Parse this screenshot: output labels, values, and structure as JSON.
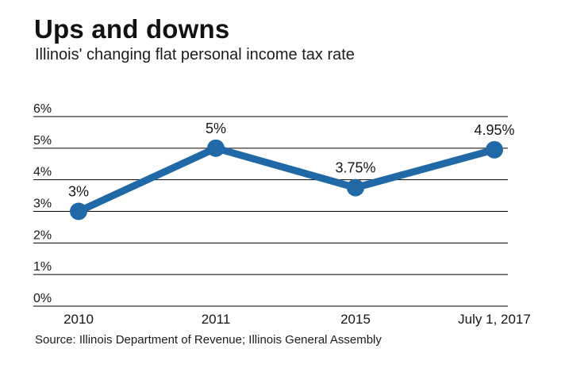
{
  "header": {
    "title": "Ups and downs",
    "subtitle": "Illinois' changing flat personal income tax rate"
  },
  "source": "Source: Illinois Department of Revenue; Illinois General Assembly",
  "colors": {
    "line": "#2169A6",
    "grid": "#000000",
    "text": "#161616"
  },
  "chart_data": {
    "type": "line",
    "title": "Ups and downs",
    "subtitle": "Illinois' changing flat personal income tax rate",
    "categories": [
      "2010",
      "2011",
      "2015",
      "July 1, 2017"
    ],
    "values": [
      3,
      5,
      3.75,
      4.95
    ],
    "point_labels": [
      "3%",
      "5%",
      "3.75%",
      "4.95%"
    ],
    "y_ticks": [
      {
        "label": "6%",
        "value": 6
      },
      {
        "label": "5%",
        "value": 5
      },
      {
        "label": "4%",
        "value": 4
      },
      {
        "label": "3%",
        "value": 3
      },
      {
        "label": "2%",
        "value": 2
      },
      {
        "label": "1%",
        "value": 1
      },
      {
        "label": "0%",
        "value": 0
      }
    ],
    "ylim": [
      0,
      6
    ],
    "grid": true,
    "legend": "none",
    "marker": "circle",
    "source": "Source: Illinois Department of Revenue; Illinois General Assembly"
  }
}
